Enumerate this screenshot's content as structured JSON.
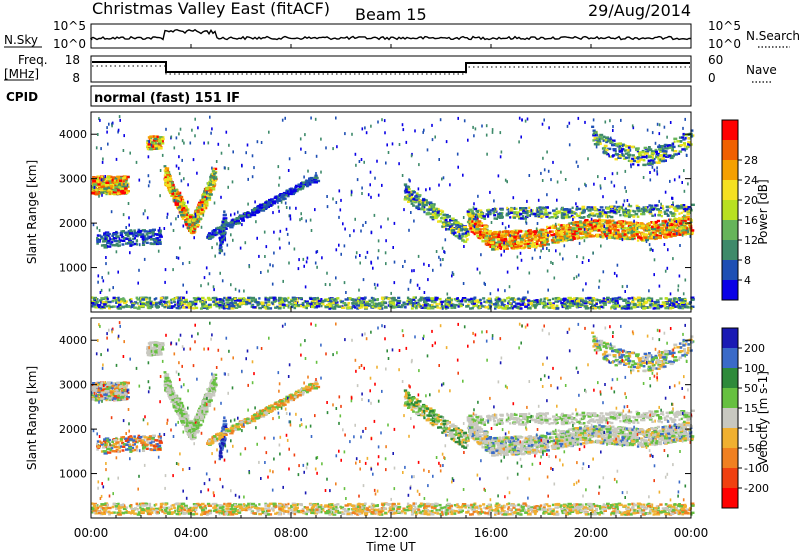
{
  "header": {
    "station": "Christmas Valley East (fitACF)",
    "beam": "Beam 15",
    "date": "29/Aug/2014"
  },
  "strip_panels": {
    "nsky": {
      "label": "N.Sky",
      "left_ticks": [
        "10^5",
        "10^0"
      ],
      "right_ticks": [
        "10^5",
        "10^0"
      ],
      "right_label": "N.Search"
    },
    "freq": {
      "label_line1": "Freq.",
      "label_line2": "[MHz]",
      "left_ticks": [
        "18",
        "8"
      ],
      "right_ticks": [
        "60",
        "0"
      ],
      "right_label": "Nave"
    },
    "cpid": {
      "label": "CPID",
      "value": "normal (fast) 151 IF"
    }
  },
  "chart_data": [
    {
      "type": "heatmap",
      "name": "Power",
      "ylabel": "Slant Range [km]",
      "ylim": [
        0,
        4500
      ],
      "yticks": [
        1000,
        2000,
        3000,
        4000
      ],
      "colorbar": {
        "title": "Power [dB]",
        "ticks": [
          4,
          8,
          12,
          16,
          20,
          24,
          28
        ],
        "colors": [
          "#0a00e6",
          "#1e4fb4",
          "#3e8a6a",
          "#66b45a",
          "#b8e020",
          "#f5e020",
          "#f5a000",
          "#f06000",
          "#ff0000"
        ]
      }
    },
    {
      "type": "heatmap",
      "name": "Velocity",
      "ylabel": "Slant Range [km]",
      "ylim": [
        0,
        4500
      ],
      "yticks": [
        1000,
        2000,
        3000,
        4000
      ],
      "xlabel": "Time UT",
      "xticks": [
        "00:00",
        "04:00",
        "08:00",
        "12:00",
        "16:00",
        "20:00",
        "00:00"
      ],
      "colorbar": {
        "title": "Velocity [m s-1]",
        "ticks": [
          200,
          100,
          50,
          15,
          -15,
          -50,
          -100,
          -200
        ],
        "colors": [
          "#1a1ab4",
          "#3a6ac8",
          "#2e8a3a",
          "#66c040",
          "#c8c8c0",
          "#f0b030",
          "#f08020",
          "#f04010",
          "#ff0000"
        ]
      }
    }
  ]
}
